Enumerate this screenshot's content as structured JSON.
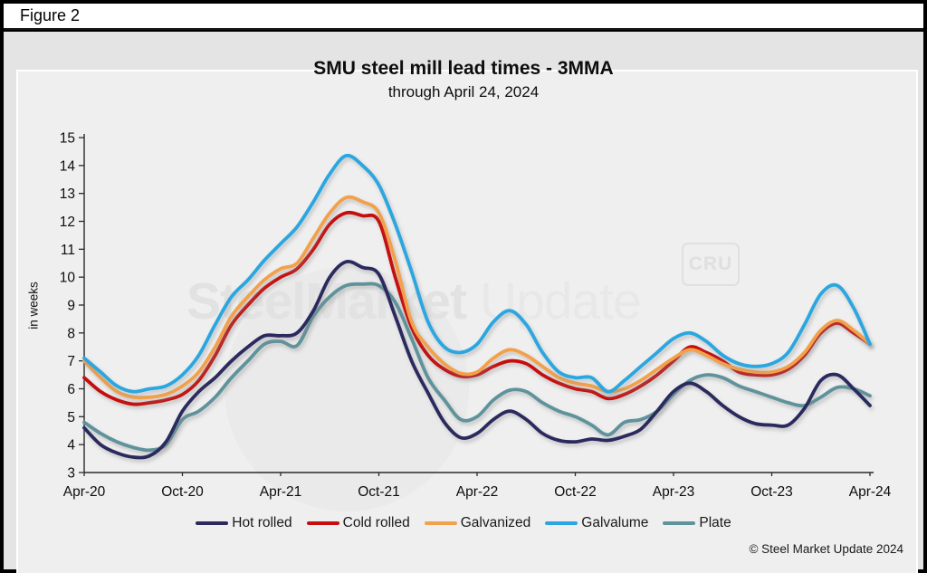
{
  "figure_label": "Figure 2",
  "title": "SMU steel mill lead times - 3MMA",
  "subtitle": "through April 24, 2024",
  "y_axis_label": "in weeks",
  "watermark": {
    "text_bold": "SteelMarket",
    "text_light": " Update",
    "cru_badge": "CRU"
  },
  "copyright": "© Steel Market Update 2024",
  "chart_data": {
    "type": "line",
    "x_tick_labels": [
      "Apr-20",
      "Oct-20",
      "Apr-21",
      "Oct-21",
      "Apr-22",
      "Oct-22",
      "Apr-23",
      "Oct-23",
      "Apr-24"
    ],
    "x_months_per_tick": 6,
    "y_ticks": [
      3,
      4,
      5,
      6,
      7,
      8,
      9,
      10,
      11,
      12,
      13,
      14,
      15
    ],
    "ylim": [
      3,
      15
    ],
    "ylabel": "in weeks",
    "grid": false,
    "legend_position": "bottom",
    "x_start": "Apr-20",
    "x_end": "Apr-24",
    "x_interval": "monthly",
    "series": [
      {
        "name": "Hot rolled",
        "color": "#2b2a5e",
        "values": [
          4.6,
          4.0,
          3.7,
          3.55,
          3.6,
          4.1,
          5.2,
          5.9,
          6.4,
          7.0,
          7.5,
          7.9,
          7.9,
          8.0,
          8.8,
          10.0,
          10.55,
          10.35,
          10.1,
          8.6,
          7.0,
          5.85,
          4.8,
          4.25,
          4.4,
          4.9,
          5.2,
          4.9,
          4.4,
          4.15,
          4.1,
          4.2,
          4.15,
          4.3,
          4.55,
          5.2,
          5.9,
          6.2,
          5.9,
          5.4,
          5.0,
          4.75,
          4.7,
          4.7,
          5.3,
          6.3,
          6.5,
          6.0,
          5.4
        ]
      },
      {
        "name": "Cold rolled",
        "color": "#c60d10",
        "values": [
          6.4,
          5.9,
          5.6,
          5.45,
          5.5,
          5.6,
          5.8,
          6.3,
          7.2,
          8.3,
          9.0,
          9.6,
          10.0,
          10.3,
          11.0,
          11.9,
          12.3,
          12.2,
          12.0,
          10.0,
          8.2,
          7.2,
          6.7,
          6.45,
          6.5,
          6.8,
          7.0,
          6.9,
          6.5,
          6.2,
          6.0,
          5.9,
          5.65,
          5.8,
          6.1,
          6.5,
          7.0,
          7.5,
          7.3,
          7.0,
          6.6,
          6.5,
          6.5,
          6.7,
          7.2,
          8.0,
          8.35,
          8.0,
          7.6
        ]
      },
      {
        "name": "Galvanized",
        "color": "#f2a14c",
        "values": [
          7.0,
          6.4,
          5.9,
          5.7,
          5.7,
          5.8,
          6.1,
          6.6,
          7.5,
          8.6,
          9.3,
          9.9,
          10.3,
          10.5,
          11.4,
          12.3,
          12.85,
          12.7,
          12.3,
          10.6,
          8.4,
          7.5,
          6.9,
          6.55,
          6.6,
          7.1,
          7.4,
          7.2,
          6.8,
          6.4,
          6.2,
          6.1,
          5.9,
          6.0,
          6.3,
          6.7,
          7.1,
          7.4,
          7.2,
          6.9,
          6.7,
          6.6,
          6.6,
          6.8,
          7.3,
          8.1,
          8.45,
          8.1,
          7.6
        ]
      },
      {
        "name": "Galvalume",
        "color": "#2aa7e0",
        "values": [
          7.1,
          6.6,
          6.1,
          5.9,
          6.0,
          6.1,
          6.5,
          7.2,
          8.3,
          9.3,
          9.9,
          10.6,
          11.2,
          11.8,
          12.7,
          13.7,
          14.35,
          14.0,
          13.3,
          11.9,
          10.2,
          8.4,
          7.5,
          7.3,
          7.6,
          8.4,
          8.8,
          8.3,
          7.3,
          6.6,
          6.4,
          6.4,
          5.9,
          6.3,
          6.8,
          7.3,
          7.8,
          8.0,
          7.7,
          7.2,
          6.9,
          6.8,
          6.9,
          7.3,
          8.3,
          9.4,
          9.7,
          8.9,
          7.6
        ]
      },
      {
        "name": "Plate",
        "color": "#5e939c",
        "values": [
          4.8,
          4.4,
          4.1,
          3.9,
          3.8,
          4.0,
          4.9,
          5.2,
          5.7,
          6.4,
          7.0,
          7.6,
          7.7,
          7.55,
          8.6,
          9.3,
          9.7,
          9.75,
          9.7,
          9.1,
          7.8,
          6.4,
          5.6,
          4.9,
          5.0,
          5.6,
          5.95,
          5.9,
          5.5,
          5.2,
          5.0,
          4.7,
          4.35,
          4.8,
          4.9,
          5.2,
          5.8,
          6.3,
          6.5,
          6.4,
          6.1,
          5.9,
          5.7,
          5.5,
          5.4,
          5.7,
          6.05,
          6.0,
          5.75
        ]
      }
    ]
  }
}
